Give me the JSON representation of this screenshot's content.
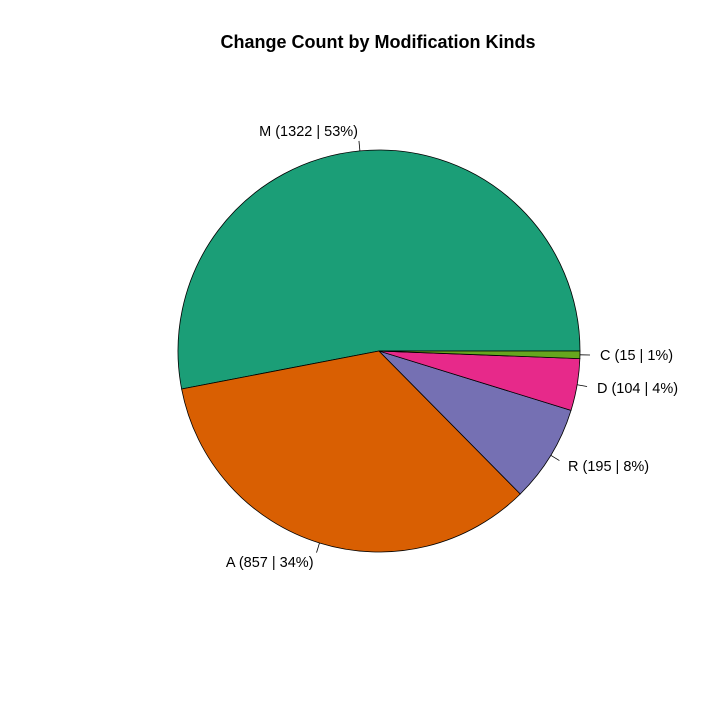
{
  "chart_data": {
    "type": "pie",
    "title": "Change Count by Modification Kinds",
    "slices": [
      {
        "label": "M (1322 | 53%)",
        "name": "M",
        "value": 1322,
        "color": "#1B9E77"
      },
      {
        "label": "A (857 | 34%)",
        "name": "A",
        "value": 857,
        "color": "#D95F02"
      },
      {
        "label": "R (195 | 8%)",
        "name": "R",
        "value": 195,
        "color": "#7570B3"
      },
      {
        "label": "D (104 | 4%)",
        "name": "D",
        "value": 104,
        "color": "#E7298A"
      },
      {
        "label": "C (15 | 1%)",
        "name": "C",
        "value": 15,
        "color": "#66A61E"
      }
    ],
    "direction": "counterclockwise",
    "start_angle": "3 o'clock",
    "legend": "none"
  }
}
